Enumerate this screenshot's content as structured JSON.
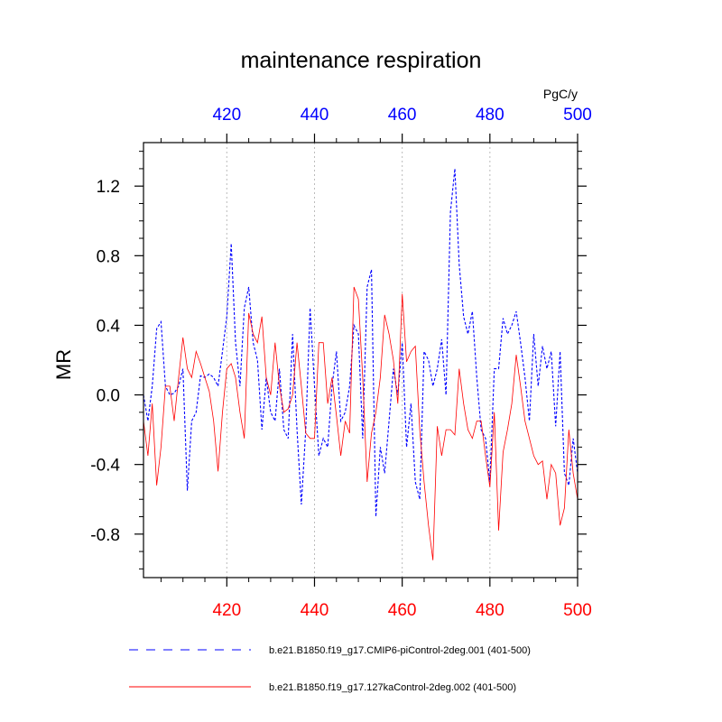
{
  "chart_data": {
    "type": "line",
    "title": "maintenance respiration",
    "units": "PgC/y",
    "ylabel": "MR",
    "xlim": [
      401,
      500
    ],
    "ylim": [
      -1.05,
      1.45
    ],
    "y_ticks": [
      -0.8,
      -0.4,
      0.0,
      0.4,
      0.8,
      1.2
    ],
    "y_tick_labels": [
      "-0.8",
      "-0.4",
      "0.0",
      "0.4",
      "0.8",
      "1.2"
    ],
    "x_ticks": [
      420,
      440,
      460,
      480,
      500
    ],
    "x_tick_labels_bottom": [
      "420",
      "440",
      "460",
      "480",
      "500"
    ],
    "x_tick_labels_top": [
      "420",
      "440",
      "460",
      "480",
      "500"
    ],
    "bottom_axis_color": "#ff0000",
    "top_axis_color": "#0000ff",
    "grid": "vertical dotted at major x ticks",
    "x": [
      401,
      402,
      403,
      404,
      405,
      406,
      407,
      408,
      409,
      410,
      411,
      412,
      413,
      414,
      415,
      416,
      417,
      418,
      419,
      420,
      421,
      422,
      423,
      424,
      425,
      426,
      427,
      428,
      429,
      430,
      431,
      432,
      433,
      434,
      435,
      436,
      437,
      438,
      439,
      440,
      441,
      442,
      443,
      444,
      445,
      446,
      447,
      448,
      449,
      450,
      451,
      452,
      453,
      454,
      455,
      456,
      457,
      458,
      459,
      460,
      461,
      462,
      463,
      464,
      465,
      466,
      467,
      468,
      469,
      470,
      471,
      472,
      473,
      474,
      475,
      476,
      477,
      478,
      479,
      480,
      481,
      482,
      483,
      484,
      485,
      486,
      487,
      488,
      489,
      490,
      491,
      492,
      493,
      494,
      495,
      496,
      497,
      498,
      499,
      500
    ],
    "series": [
      {
        "name": "b.e21.B1850.f19_g17.CMIP6-piControl-2deg.001 (401-500)",
        "color": "#0000ff",
        "dash": "dashed",
        "values": [
          0.0,
          -0.15,
          0.05,
          0.38,
          0.42,
          0.05,
          0.0,
          0.01,
          0.05,
          0.15,
          -0.55,
          -0.15,
          -0.1,
          0.11,
          0.1,
          0.12,
          0.1,
          0.05,
          0.25,
          0.45,
          0.87,
          0.3,
          0.05,
          0.5,
          0.62,
          0.3,
          0.2,
          -0.2,
          0.1,
          -0.1,
          -0.15,
          0.15,
          -0.2,
          -0.25,
          0.35,
          -0.2,
          -0.63,
          -0.2,
          0.5,
          0.05,
          -0.35,
          -0.25,
          -0.3,
          0.05,
          0.25,
          -0.15,
          -0.1,
          0.05,
          0.4,
          0.35,
          -0.25,
          0.62,
          0.72,
          -0.7,
          -0.3,
          -0.45,
          -0.15,
          0.15,
          0.0,
          0.3,
          -0.3,
          -0.05,
          -0.5,
          -0.6,
          0.25,
          0.2,
          0.05,
          0.15,
          0.32,
          0.0,
          1.05,
          1.3,
          0.75,
          0.45,
          0.35,
          0.48,
          0.1,
          -0.2,
          -0.25,
          -0.5,
          0.15,
          0.15,
          0.44,
          0.35,
          0.4,
          0.48,
          0.3,
          0.1,
          -0.15,
          0.35,
          0.05,
          0.28,
          0.15,
          0.25,
          -0.18,
          0.25,
          -0.45,
          -0.52,
          -0.25,
          -0.45
        ]
      },
      {
        "name": "b.e21.B1850.f19_g17.127kaControl-2deg.002 (401-500)",
        "color": "#ff0000",
        "dash": "solid",
        "values": [
          -0.15,
          -0.35,
          -0.05,
          -0.52,
          -0.3,
          0.05,
          0.05,
          -0.15,
          0.1,
          0.33,
          0.15,
          0.1,
          0.25,
          0.18,
          0.1,
          0.02,
          -0.15,
          -0.44,
          -0.1,
          0.15,
          0.18,
          0.1,
          -0.1,
          -0.25,
          0.47,
          0.35,
          0.3,
          0.45,
          0.1,
          0.0,
          0.3,
          0.05,
          -0.1,
          -0.08,
          0.0,
          0.3,
          0.05,
          -0.22,
          -0.25,
          -0.25,
          0.3,
          0.3,
          -0.05,
          0.1,
          -0.12,
          -0.35,
          -0.15,
          -0.22,
          0.62,
          0.55,
          0.1,
          -0.5,
          -0.22,
          -0.1,
          0.1,
          0.46,
          0.35,
          0.2,
          -0.05,
          0.58,
          0.19,
          0.25,
          0.28,
          -0.2,
          -0.5,
          -0.75,
          -0.95,
          -0.18,
          -0.35,
          -0.2,
          -0.2,
          -0.23,
          0.15,
          -0.05,
          -0.2,
          -0.25,
          -0.15,
          -0.15,
          -0.35,
          -0.53,
          -0.1,
          -0.78,
          -0.33,
          -0.2,
          -0.05,
          0.23,
          0.05,
          -0.15,
          -0.25,
          -0.35,
          -0.4,
          -0.38,
          -0.6,
          -0.4,
          -0.45,
          -0.75,
          -0.65,
          -0.2,
          -0.45,
          -0.6
        ]
      }
    ]
  }
}
